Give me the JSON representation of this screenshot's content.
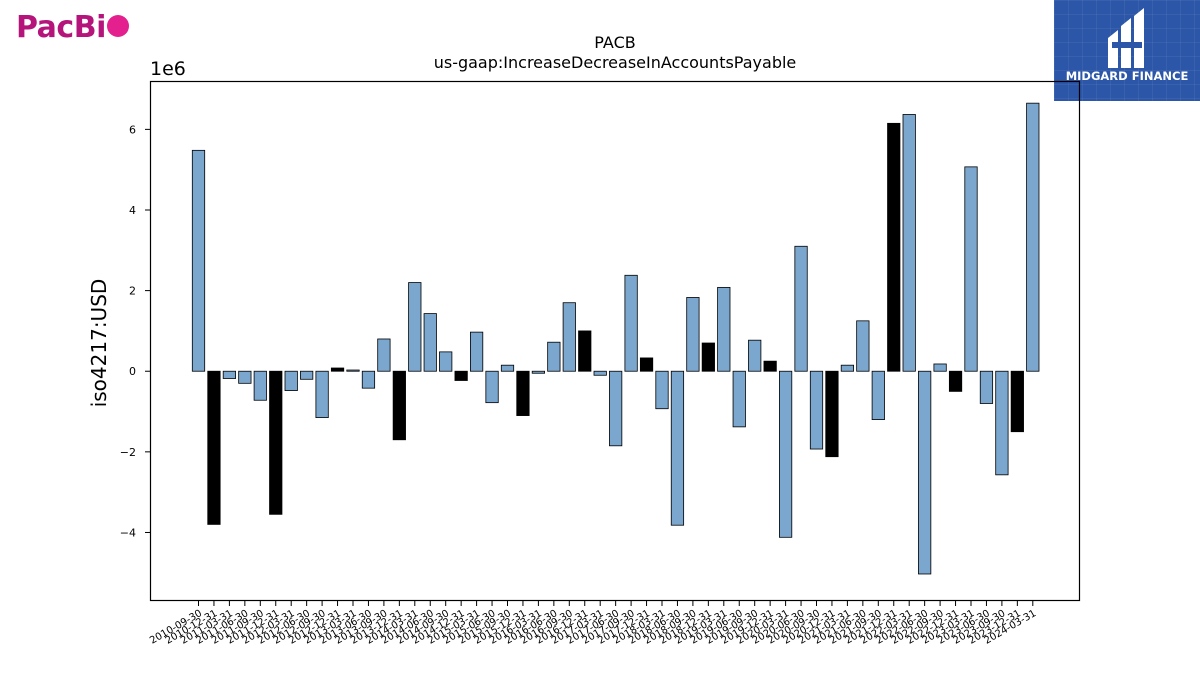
{
  "logos": {
    "left_text": "PacBi",
    "right_text": "MIDGARD FINANCE"
  },
  "chart_data": {
    "type": "bar",
    "title": "PACB",
    "subtitle": "us-gaap:IncreaseDecreaseInAccountsPayable",
    "ylabel": "iso4217:USD",
    "xlabel": "",
    "y_offset_label": "1e6",
    "ylim": [
      -5.7,
      7.2
    ],
    "yticks": [
      -4,
      -2,
      0,
      2,
      4,
      6
    ],
    "ytick_labels": [
      "−4",
      "−2",
      "0",
      "2",
      "4",
      "6"
    ],
    "grid": false,
    "colors": {
      "q": "#7ba7cf",
      "fy": "#000000"
    },
    "categories": [
      "2010-09-30",
      "2010-12-31",
      "2011-03-31",
      "2011-06-30",
      "2011-09-30",
      "2011-12-31",
      "2012-03-31",
      "2012-06-30",
      "2012-09-30",
      "2012-12-31",
      "2013-03-31",
      "2013-06-30",
      "2013-09-30",
      "2013-12-31",
      "2014-03-31",
      "2014-06-30",
      "2014-09-30",
      "2014-12-31",
      "2015-03-31",
      "2015-06-30",
      "2015-09-30",
      "2015-12-31",
      "2016-03-31",
      "2016-06-30",
      "2016-09-30",
      "2016-12-31",
      "2017-03-31",
      "2017-06-30",
      "2017-09-30",
      "2017-12-31",
      "2018-03-31",
      "2018-06-30",
      "2018-09-30",
      "2018-12-31",
      "2019-03-31",
      "2019-06-30",
      "2019-09-30",
      "2019-12-31",
      "2020-03-31",
      "2020-06-30",
      "2020-09-30",
      "2020-12-31",
      "2021-03-31",
      "2021-06-30",
      "2021-09-30",
      "2021-12-31",
      "2022-03-31",
      "2022-06-30",
      "2022-09-30",
      "2022-12-31",
      "2023-03-31",
      "2023-06-30",
      "2023-09-30",
      "2023-12-31",
      "2024-03-31"
    ],
    "values": [
      5.48,
      -3.8,
      -0.18,
      -0.3,
      -0.72,
      -3.55,
      -0.48,
      -0.2,
      -1.15,
      0.08,
      0.03,
      -0.42,
      0.8,
      -1.7,
      2.2,
      1.43,
      0.48,
      -0.23,
      0.97,
      -0.78,
      0.15,
      -1.1,
      -0.05,
      0.72,
      1.7,
      1.0,
      -0.1,
      -1.85,
      2.38,
      0.33,
      -0.93,
      -3.82,
      1.83,
      0.7,
      2.08,
      -1.38,
      0.77,
      0.25,
      -4.12,
      3.1,
      -1.93,
      -2.12,
      0.15,
      1.25,
      -1.2,
      6.15,
      6.37,
      -5.03,
      0.18,
      -0.5,
      5.07,
      -0.8,
      -2.57,
      -1.5,
      6.65
    ],
    "bar_kind": [
      "q",
      "fy",
      "q",
      "q",
      "q",
      "fy",
      "q",
      "q",
      "q",
      "fy",
      "q",
      "q",
      "q",
      "fy",
      "q",
      "q",
      "q",
      "fy",
      "q",
      "q",
      "q",
      "fy",
      "q",
      "q",
      "q",
      "fy",
      "q",
      "q",
      "q",
      "fy",
      "q",
      "q",
      "q",
      "fy",
      "q",
      "q",
      "q",
      "fy",
      "q",
      "q",
      "q",
      "fy",
      "q",
      "q",
      "q",
      "fy",
      "q",
      "q",
      "q",
      "fy",
      "q",
      "q",
      "q",
      "fy",
      "q"
    ]
  }
}
